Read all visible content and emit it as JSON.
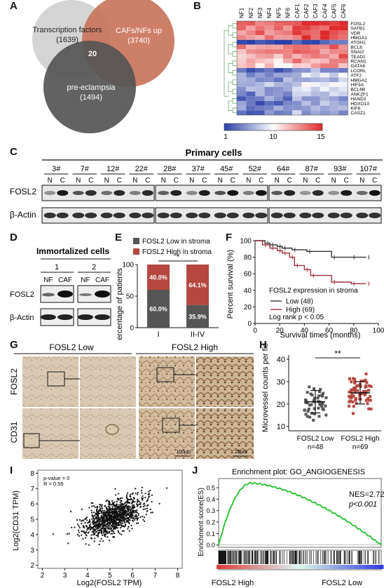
{
  "panel_labels": [
    "A",
    "B",
    "C",
    "D",
    "E",
    "F",
    "G",
    "H",
    "I",
    "J"
  ],
  "venn": {
    "sets": [
      {
        "name": "Transcription factors",
        "count": "(1639)",
        "color": "#cfcfcf"
      },
      {
        "name": "CAFs/NFs up",
        "count": "(3740)",
        "color": "#c9745a"
      },
      {
        "name": "pre-eclampsia",
        "count": "(1494)",
        "color": "#555555"
      }
    ],
    "intersection": "20"
  },
  "heatmap": {
    "columns": [
      "NF1",
      "NF2",
      "NF3",
      "NF4",
      "NF5",
      "NF6",
      "CAF1",
      "CAF2",
      "CAF3",
      "CAF4",
      "CAF5",
      "CAF6"
    ],
    "rows": [
      "FOSL2",
      "SATB1",
      "VDR",
      "HMGA1",
      "ATOH1",
      "BCL6",
      "SNAI2",
      "TEAD1",
      "RCAN1",
      "GATA6",
      "LCORL",
      "ATF2",
      "HMGA2",
      "HIF3A",
      "BCL6B",
      "ANKZF1",
      "HAND2",
      "HOXO10",
      "KIF6",
      "CASZ1"
    ],
    "scale_ticks": [
      "1",
      "10",
      "15"
    ],
    "colors": {
      "low": "#2a3fa8",
      "mid": "#ffffff",
      "high": "#e02a2a"
    }
  },
  "blot_c": {
    "title": "Primary cells",
    "samples": [
      "3#",
      "7#",
      "12#",
      "22#",
      "28#",
      "37#",
      "45#",
      "52#",
      "64#",
      "87#",
      "93#",
      "107#"
    ],
    "lane_labels": [
      "N",
      "C"
    ],
    "rows": [
      "FOSL2",
      "β-Actin"
    ]
  },
  "blot_d": {
    "title": "Immortalized cells",
    "groups": [
      "1",
      "2"
    ],
    "lane_labels": [
      "NF",
      "CAF"
    ],
    "rows": [
      "FOSL2",
      "β-Actin"
    ]
  },
  "chart_data": [
    {
      "type": "bar",
      "panel": "E",
      "categories": [
        "I",
        "II-IV"
      ],
      "series": [
        {
          "name": "FOSL2 Low in stroma",
          "values": [
            60.0,
            35.9
          ],
          "labels": [
            "60.0%",
            "35.9%"
          ],
          "color": "#555555"
        },
        {
          "name": "FOSL2 High in stroma",
          "values": [
            40.0,
            64.1
          ],
          "labels": [
            "40.0%",
            "64.1%"
          ],
          "color": "#b5473f"
        }
      ],
      "ylabel": "Percentage of patients",
      "yticks": [
        "0",
        "50",
        "100"
      ],
      "ylim": [
        0,
        100
      ],
      "stacked": true,
      "significance": "*"
    },
    {
      "type": "line",
      "panel": "F",
      "title": "FOSL2 expression in stroma",
      "xlabel": "Survival times (months)",
      "ylabel": "Percent survival (%)",
      "xticks": [
        "0",
        "20",
        "40",
        "60",
        "80",
        "100"
      ],
      "yticks": [
        "0",
        "20",
        "40",
        "60",
        "80",
        "100"
      ],
      "xlim": [
        0,
        100
      ],
      "ylim": [
        0,
        100
      ],
      "series": [
        {
          "name": "Low (48)",
          "color": "#333333",
          "x": [
            0,
            8,
            12,
            18,
            22,
            30,
            42,
            62,
            78,
            90
          ],
          "y": [
            100,
            97,
            95,
            93,
            91,
            89,
            87,
            80,
            80,
            80
          ]
        },
        {
          "name": "High (69)",
          "color": "#a0303a",
          "x": [
            0,
            6,
            12,
            18,
            22,
            28,
            32,
            40,
            45,
            62,
            78,
            90
          ],
          "y": [
            100,
            95,
            91,
            88,
            85,
            80,
            70,
            65,
            58,
            50,
            48,
            48
          ]
        }
      ],
      "annotation": "Log rank p < 0.05"
    },
    {
      "type": "scatter",
      "panel": "H",
      "categories": [
        "FOSL2 Low",
        "FOSL2 High"
      ],
      "n_labels": [
        "n=48",
        "n=69"
      ],
      "ylabel": "Microvessel counts per field",
      "yticks": [
        "10",
        "20",
        "30",
        "40"
      ],
      "ylim": [
        8,
        40
      ],
      "means": [
        21,
        25
      ],
      "sd": [
        5,
        5
      ],
      "colors": [
        "#555555",
        "#b5473f"
      ],
      "significance": "**"
    },
    {
      "type": "scatter",
      "panel": "I",
      "xlabel": "Log2(FOSL2 TPM)",
      "ylabel": "Log2(CD31 TPM)",
      "xticks": [
        "2",
        "3",
        "4",
        "5",
        "6",
        "7",
        "8"
      ],
      "yticks": [
        "2",
        "3",
        "4",
        "5",
        "6",
        "7",
        "8"
      ],
      "xlim": [
        1.8,
        8.2
      ],
      "ylim": [
        1.8,
        8.2
      ],
      "stats": [
        "p-value = 0",
        "R = 0.55"
      ]
    },
    {
      "type": "line",
      "panel": "J",
      "title": "Enrichment plot: GO_ANGIOGENESIS",
      "ylabel": "Enrichment score(ES)",
      "yticks": [
        "0.0",
        "0.1",
        "0.2",
        "0.3",
        "0.4",
        "0.5"
      ],
      "ylim": [
        -0.02,
        0.58
      ],
      "nes": "NES=2.72",
      "pval": "p<0.001",
      "x_labels": [
        "FOSL2 High",
        "FOSL2 Low"
      ],
      "color": "#22c02a"
    }
  ],
  "panel_g": {
    "headers": [
      "FOSL2 Low",
      "FOSL2 High"
    ],
    "rows": [
      "FOSL2",
      "CD31"
    ],
    "scale_bars": [
      "100μm",
      "25μm"
    ]
  }
}
